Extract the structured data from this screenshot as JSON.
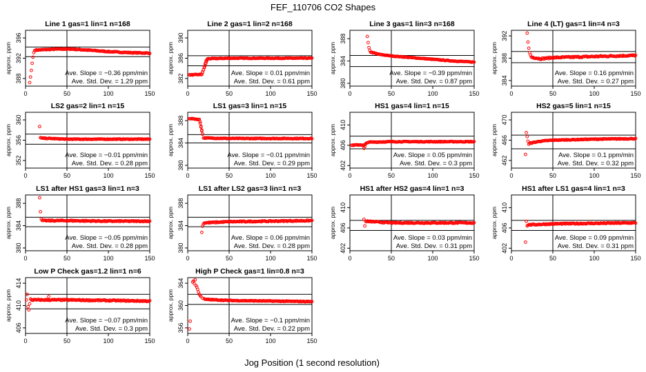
{
  "figure": {
    "title": "FEF_110706  CO2 Shapes",
    "xlabel": "Jog Position (1 second resolution)",
    "marker_color": "#ff0000"
  },
  "chart_data": [
    {
      "type": "scatter",
      "title": "Line 1 gas=1 lin=1 n=168",
      "ylabel": "approx. ppm",
      "xlim": [
        0,
        150
      ],
      "ylim": [
        386.5,
        397.5
      ],
      "yticks": [
        388,
        392,
        396
      ],
      "xticks": [
        0,
        50,
        100,
        150
      ],
      "hlines": [
        392.3,
        394.2
      ],
      "vline": 50,
      "slope_text": "Ave. Slope = −0.36  ppm/min",
      "sd_text": "Ave. Std. Dev. = 1.29  ppm",
      "points": [
        {
          "x": 5,
          "y": 387.2
        },
        {
          "x": 6,
          "y": 388.3
        },
        {
          "x": 7,
          "y": 389.6
        },
        {
          "x": 8,
          "y": 391.0
        },
        {
          "x": 9,
          "y": 392.2
        },
        {
          "x": 10,
          "y": 393.1
        },
        {
          "x": 11,
          "y": 393.5
        }
      ],
      "curve": [
        {
          "x": 12,
          "y": 393.6
        },
        {
          "x": 25,
          "y": 393.7
        },
        {
          "x": 40,
          "y": 393.8
        },
        {
          "x": 55,
          "y": 393.8
        },
        {
          "x": 75,
          "y": 393.6
        },
        {
          "x": 100,
          "y": 393.3
        },
        {
          "x": 125,
          "y": 393.1
        },
        {
          "x": 150,
          "y": 393.0
        }
      ],
      "noise": 0.08
    },
    {
      "type": "scatter",
      "title": "Line 2 gas=1 lin=2 n=168",
      "ylabel": "approx. ppm",
      "xlim": [
        0,
        150
      ],
      "ylim": [
        380.5,
        391.5
      ],
      "yticks": [
        382,
        386,
        390
      ],
      "xticks": [
        0,
        50,
        100,
        150
      ],
      "hlines": [
        384.5,
        386.5
      ],
      "vline": 50,
      "slope_text": "Ave. Slope = 0.01  ppm/min",
      "sd_text": "Ave. Std. Dev. = 0.61  ppm",
      "points": [
        {
          "x": 18,
          "y": 383.3
        },
        {
          "x": 19,
          "y": 383.7
        },
        {
          "x": 20,
          "y": 384.3
        },
        {
          "x": 21,
          "y": 384.9
        },
        {
          "x": 22,
          "y": 385.4
        },
        {
          "x": 23,
          "y": 385.7
        }
      ],
      "curve": [
        {
          "x": 2,
          "y": 382.7
        },
        {
          "x": 17,
          "y": 382.8
        },
        {
          "x": 24,
          "y": 385.9
        },
        {
          "x": 50,
          "y": 386.0
        },
        {
          "x": 100,
          "y": 386.0
        },
        {
          "x": 150,
          "y": 386.0
        }
      ],
      "noise": 0.06
    },
    {
      "type": "scatter",
      "title": "Line 3 gas=1 lin=3 n=168",
      "ylabel": "approx. ppm",
      "xlim": [
        0,
        150
      ],
      "ylim": [
        379.5,
        389.5
      ],
      "yticks": [
        380,
        384,
        388
      ],
      "xticks": [
        0,
        50,
        100,
        150
      ],
      "hlines": [
        383.0,
        385.0
      ],
      "vline": 50,
      "slope_text": "Ave. Slope = −0.39  ppm/min",
      "sd_text": "Ave. Std. Dev. = 0.87  ppm",
      "points": [
        {
          "x": 21,
          "y": 388.4
        },
        {
          "x": 22,
          "y": 387.3
        },
        {
          "x": 23,
          "y": 386.4
        },
        {
          "x": 24,
          "y": 385.9
        }
      ],
      "curve": [
        {
          "x": 25,
          "y": 385.6
        },
        {
          "x": 35,
          "y": 385.2
        },
        {
          "x": 50,
          "y": 384.9
        },
        {
          "x": 75,
          "y": 384.6
        },
        {
          "x": 100,
          "y": 384.3
        },
        {
          "x": 125,
          "y": 384.0
        },
        {
          "x": 150,
          "y": 383.8
        }
      ],
      "noise": 0.05
    },
    {
      "type": "scatter",
      "title": "Line 4 (LT) gas=1 lin=4 n=3",
      "ylabel": "approx. ppm",
      "xlim": [
        0,
        150
      ],
      "ylim": [
        383,
        393
      ],
      "yticks": [
        384,
        388,
        392
      ],
      "xticks": [
        0,
        50,
        100,
        150
      ],
      "hlines": [
        387.2,
        389.2
      ],
      "vline": 50,
      "slope_text": "Ave. Slope = 0.16  ppm/min",
      "sd_text": "Ave. Std. Dev. = 0.27  ppm",
      "points": [
        {
          "x": 19,
          "y": 392.5
        },
        {
          "x": 20,
          "y": 390.9
        },
        {
          "x": 21,
          "y": 389.8
        },
        {
          "x": 22,
          "y": 389.0
        },
        {
          "x": 23,
          "y": 388.6
        }
      ],
      "curve": [
        {
          "x": 24,
          "y": 388.2
        },
        {
          "x": 35,
          "y": 387.9
        },
        {
          "x": 50,
          "y": 388.1
        },
        {
          "x": 100,
          "y": 388.3
        },
        {
          "x": 150,
          "y": 388.5
        }
      ],
      "noise": 0.12
    },
    {
      "type": "scatter",
      "title": "LS2 gas=2 lin=1 n=15",
      "ylabel": "approx. ppm",
      "xlim": [
        0,
        150
      ],
      "ylim": [
        350.5,
        361.5
      ],
      "yticks": [
        352,
        356,
        360
      ],
      "xticks": [
        0,
        50,
        100,
        150
      ],
      "hlines": [
        355.2,
        357.2
      ],
      "vline": 50,
      "slope_text": "Ave. Slope = −0.01  ppm/min",
      "sd_text": "Ave. Std. Dev. = 0.28  ppm",
      "points": [
        {
          "x": 17,
          "y": 358.7
        },
        {
          "x": 18,
          "y": 356.5
        }
      ],
      "curve": [
        {
          "x": 19,
          "y": 356.4
        },
        {
          "x": 50,
          "y": 356.2
        },
        {
          "x": 100,
          "y": 356.2
        },
        {
          "x": 150,
          "y": 356.2
        }
      ],
      "noise": 0.06
    },
    {
      "type": "scatter",
      "title": "LS1 gas=3 lin=1 n=15",
      "ylabel": "approx. ppm",
      "xlim": [
        0,
        150
      ],
      "ylim": [
        379.5,
        389.5
      ],
      "yticks": [
        380,
        384,
        388
      ],
      "xticks": [
        0,
        50,
        100,
        150
      ],
      "hlines": [
        384.0,
        385.5
      ],
      "vline": 50,
      "slope_text": "Ave. Slope = −0.01  ppm/min",
      "sd_text": "Ave. Std. Dev. = 0.29  ppm",
      "points": [
        {
          "x": 15,
          "y": 387.8
        },
        {
          "x": 16,
          "y": 387.0
        },
        {
          "x": 17,
          "y": 386.3
        },
        {
          "x": 18,
          "y": 385.6
        }
      ],
      "curve": [
        {
          "x": 2,
          "y": 388.4
        },
        {
          "x": 14,
          "y": 388.2
        },
        {
          "x": 19,
          "y": 384.9
        },
        {
          "x": 50,
          "y": 384.8
        },
        {
          "x": 100,
          "y": 384.8
        },
        {
          "x": 150,
          "y": 384.8
        }
      ],
      "noise": 0.06
    },
    {
      "type": "scatter",
      "title": "HS1 gas=4 lin=1 n=15",
      "ylabel": "approx. ppm",
      "xlim": [
        0,
        150
      ],
      "ylim": [
        401.5,
        412.5
      ],
      "yticks": [
        402,
        406,
        410
      ],
      "xticks": [
        0,
        50,
        100,
        150
      ],
      "hlines": [
        405.3,
        407.8
      ],
      "vline": 50,
      "slope_text": "Ave. Slope = 0.05  ppm/min",
      "sd_text": "Ave. Std. Dev. = 0.3  ppm",
      "points": [
        {
          "x": 17,
          "y": 405.4
        },
        {
          "x": 18,
          "y": 405.8
        }
      ],
      "curve": [
        {
          "x": 2,
          "y": 406.0
        },
        {
          "x": 14,
          "y": 406.1
        },
        {
          "x": 16,
          "y": 405.9
        },
        {
          "x": 22,
          "y": 406.6
        },
        {
          "x": 50,
          "y": 406.7
        },
        {
          "x": 100,
          "y": 406.7
        },
        {
          "x": 150,
          "y": 406.7
        }
      ],
      "noise": 0.07
    },
    {
      "type": "scatter",
      "title": "HS2 gas=5 lin=1 n=15",
      "ylabel": "approx. ppm",
      "xlim": [
        0,
        150
      ],
      "ylim": [
        460.5,
        471.5
      ],
      "yticks": [
        462,
        466,
        470
      ],
      "xticks": [
        0,
        50,
        100,
        150
      ],
      "hlines": [
        464.3,
        467.0
      ],
      "vline": 50,
      "slope_text": "Ave. Slope = 0.1  ppm/min",
      "sd_text": "Ave. Std. Dev. = 0.32  ppm",
      "points": [
        {
          "x": 17,
          "y": 463.2
        },
        {
          "x": 18,
          "y": 467.5
        },
        {
          "x": 19,
          "y": 466.7
        },
        {
          "x": 20,
          "y": 465.8
        },
        {
          "x": 21,
          "y": 465.2
        }
      ],
      "curve": [
        {
          "x": 22,
          "y": 465.4
        },
        {
          "x": 35,
          "y": 465.8
        },
        {
          "x": 50,
          "y": 466.0
        },
        {
          "x": 100,
          "y": 466.2
        },
        {
          "x": 150,
          "y": 466.3
        }
      ],
      "noise": 0.07
    },
    {
      "type": "scatter",
      "title": "LS1 after HS1 gas=3 lin=1 n=3",
      "ylabel": "approx. ppm",
      "xlim": [
        0,
        150
      ],
      "ylim": [
        379.5,
        389.5
      ],
      "yticks": [
        380,
        384,
        388
      ],
      "xticks": [
        0,
        50,
        100,
        150
      ],
      "hlines": [
        383.8,
        385.5
      ],
      "vline": 50,
      "slope_text": "Ave. Slope = −0.05  ppm/min",
      "sd_text": "Ave. Std. Dev. = 0.28  ppm",
      "points": [
        {
          "x": 17,
          "y": 389.0
        },
        {
          "x": 18,
          "y": 386.5
        },
        {
          "x": 19,
          "y": 385.2
        }
      ],
      "curve": [
        {
          "x": 20,
          "y": 384.9
        },
        {
          "x": 50,
          "y": 384.9
        },
        {
          "x": 100,
          "y": 384.8
        },
        {
          "x": 150,
          "y": 384.8
        }
      ],
      "noise": 0.09
    },
    {
      "type": "scatter",
      "title": "LS1 after LS2 gas=3 lin=1 n=3",
      "ylabel": "approx. ppm",
      "xlim": [
        0,
        150
      ],
      "ylim": [
        379.5,
        389.5
      ],
      "yticks": [
        380,
        384,
        388
      ],
      "xticks": [
        0,
        50,
        100,
        150
      ],
      "hlines": [
        383.8,
        385.5
      ],
      "vline": 50,
      "slope_text": "Ave. Slope = 0.06  ppm/min",
      "sd_text": "Ave. Std. Dev. = 0.28  ppm",
      "points": [
        {
          "x": 17,
          "y": 382.8
        },
        {
          "x": 18,
          "y": 383.9
        },
        {
          "x": 19,
          "y": 384.3
        }
      ],
      "curve": [
        {
          "x": 20,
          "y": 384.5
        },
        {
          "x": 50,
          "y": 384.7
        },
        {
          "x": 100,
          "y": 384.8
        },
        {
          "x": 150,
          "y": 384.9
        }
      ],
      "noise": 0.09
    },
    {
      "type": "scatter",
      "title": "HS1 after HS2 gas=4 lin=1 n=3",
      "ylabel": "approx. ppm",
      "xlim": [
        0,
        150
      ],
      "ylim": [
        401.5,
        412.5
      ],
      "yticks": [
        402,
        406,
        410
      ],
      "xticks": [
        0,
        50,
        100,
        150
      ],
      "hlines": [
        405.5,
        407.5
      ],
      "vline": 50,
      "slope_text": "Ave. Slope = 0.03  ppm/min",
      "sd_text": "Ave. Std. Dev. = 0.31  ppm",
      "points": [
        {
          "x": 17,
          "y": 407.7
        },
        {
          "x": 18,
          "y": 406.4
        },
        {
          "x": 19,
          "y": 407.3
        }
      ],
      "curve": [
        {
          "x": 20,
          "y": 407.3
        },
        {
          "x": 50,
          "y": 407.0
        },
        {
          "x": 100,
          "y": 407.0
        },
        {
          "x": 150,
          "y": 407.0
        }
      ],
      "noise": 0.1
    },
    {
      "type": "scatter",
      "title": "HS1 after LS1 gas=4 lin=1 n=3",
      "ylabel": "approx. ppm",
      "xlim": [
        0,
        150
      ],
      "ylim": [
        401.5,
        412.5
      ],
      "yticks": [
        402,
        406,
        410
      ],
      "xticks": [
        0,
        50,
        100,
        150
      ],
      "hlines": [
        405.5,
        407.5
      ],
      "vline": 50,
      "slope_text": "Ave. Slope = 0.09  ppm/min",
      "sd_text": "Ave. Std. Dev. = 0.31  ppm",
      "points": [
        {
          "x": 17,
          "y": 403.2
        },
        {
          "x": 18,
          "y": 407.3
        },
        {
          "x": 19,
          "y": 406.4
        }
      ],
      "curve": [
        {
          "x": 20,
          "y": 406.6
        },
        {
          "x": 50,
          "y": 406.8
        },
        {
          "x": 100,
          "y": 406.9
        },
        {
          "x": 150,
          "y": 407.0
        }
      ],
      "noise": 0.1
    },
    {
      "type": "scatter",
      "title": "Low P Check gas=1.2 lin=1 n=6",
      "ylabel": "approx. ppm",
      "xlim": [
        0,
        150
      ],
      "ylim": [
        405,
        415
      ],
      "yticks": [
        406,
        410,
        414
      ],
      "xticks": [
        0,
        50,
        100,
        150
      ],
      "hlines": [
        409.4,
        412.0
      ],
      "vline": 50,
      "slope_text": "Ave. Slope = −0.07  ppm/min",
      "sd_text": "Ave. Std. Dev. = 0.3  ppm",
      "points": [
        {
          "x": 1,
          "y": 411.0
        },
        {
          "x": 2,
          "y": 412.0
        },
        {
          "x": 3,
          "y": 409.8
        },
        {
          "x": 4,
          "y": 409.2
        },
        {
          "x": 5,
          "y": 410.3
        },
        {
          "x": 6,
          "y": 411.2
        },
        {
          "x": 28,
          "y": 411.6
        }
      ],
      "curve": [
        {
          "x": 7,
          "y": 411.0
        },
        {
          "x": 50,
          "y": 411.0
        },
        {
          "x": 100,
          "y": 410.9
        },
        {
          "x": 150,
          "y": 410.8
        }
      ],
      "noise": 0.1
    },
    {
      "type": "scatter",
      "title": "High P Check gas=1 lin=0.8 n=3",
      "ylabel": "approx. ppm",
      "xlim": [
        0,
        150
      ],
      "ylim": [
        355,
        365
      ],
      "yticks": [
        356,
        360,
        364
      ],
      "xticks": [
        0,
        50,
        100,
        150
      ],
      "hlines": [
        360.2,
        362.0
      ],
      "vline": 50,
      "slope_text": "Ave. Slope = −0.1  ppm/min",
      "sd_text": "Ave. Std. Dev. = 0.22  ppm",
      "points": [
        {
          "x": 2,
          "y": 355.8
        },
        {
          "x": 3,
          "y": 357.2
        },
        {
          "x": 6,
          "y": 364.2
        },
        {
          "x": 7,
          "y": 364.4
        },
        {
          "x": 8,
          "y": 363.9
        },
        {
          "x": 9,
          "y": 364.6
        },
        {
          "x": 10,
          "y": 363.6
        },
        {
          "x": 11,
          "y": 363.3
        },
        {
          "x": 12,
          "y": 362.9
        },
        {
          "x": 13,
          "y": 362.4
        },
        {
          "x": 14,
          "y": 362.0
        },
        {
          "x": 15,
          "y": 361.8
        },
        {
          "x": 16,
          "y": 361.6
        },
        {
          "x": 18,
          "y": 361.3
        },
        {
          "x": 20,
          "y": 361.2
        }
      ],
      "curve": [
        {
          "x": 21,
          "y": 361.1
        },
        {
          "x": 50,
          "y": 360.9
        },
        {
          "x": 100,
          "y": 360.8
        },
        {
          "x": 150,
          "y": 360.7
        }
      ],
      "noise": 0.06
    }
  ]
}
